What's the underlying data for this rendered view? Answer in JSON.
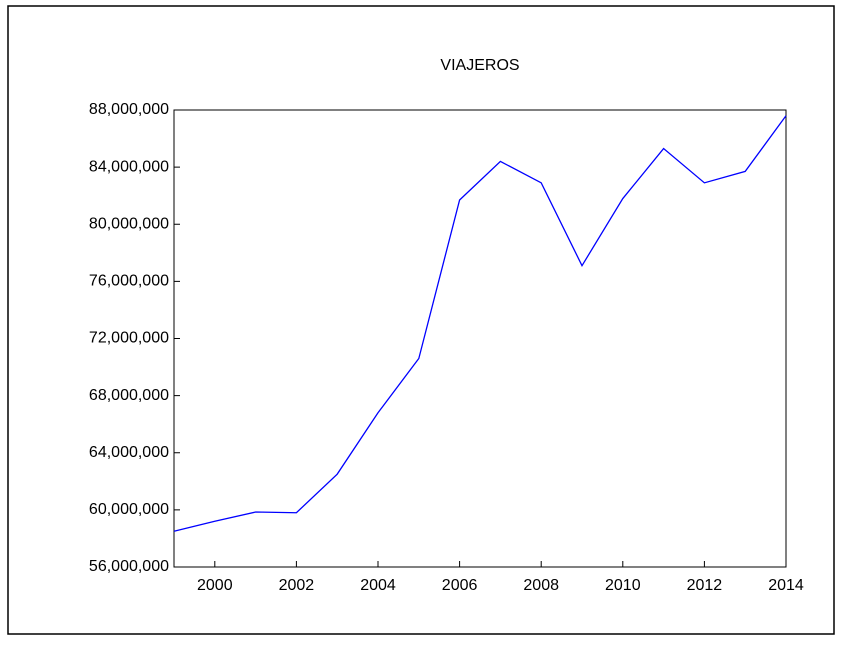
{
  "chart_data": {
    "type": "line",
    "title": "VIAJEROS",
    "x": [
      1999,
      2000,
      2001,
      2002,
      2003,
      2004,
      2005,
      2006,
      2007,
      2008,
      2009,
      2010,
      2011,
      2012,
      2013,
      2014
    ],
    "series": [
      {
        "name": "VIAJEROS",
        "color": "#0000ff",
        "values": [
          58500000,
          59200000,
          59850000,
          59800000,
          62500000,
          66800000,
          70600000,
          81700000,
          84400000,
          82900000,
          77100000,
          81800000,
          85300000,
          82900000,
          83700000,
          87600000
        ]
      }
    ],
    "xlim": [
      1999,
      2014
    ],
    "xticks": [
      2000,
      2002,
      2004,
      2006,
      2008,
      2010,
      2012,
      2014
    ],
    "ylim": [
      56000000,
      88000000
    ],
    "yticks": [
      {
        "value": 56000000,
        "label": "56,000,000"
      },
      {
        "value": 60000000,
        "label": "60,000,000"
      },
      {
        "value": 64000000,
        "label": "64,000,000"
      },
      {
        "value": 68000000,
        "label": "68,000,000"
      },
      {
        "value": 72000000,
        "label": "72,000,000"
      },
      {
        "value": 76000000,
        "label": "76,000,000"
      },
      {
        "value": 80000000,
        "label": "80,000,000"
      },
      {
        "value": 84000000,
        "label": "84,000,000"
      },
      {
        "value": 88000000,
        "label": "88,000,000"
      }
    ]
  }
}
